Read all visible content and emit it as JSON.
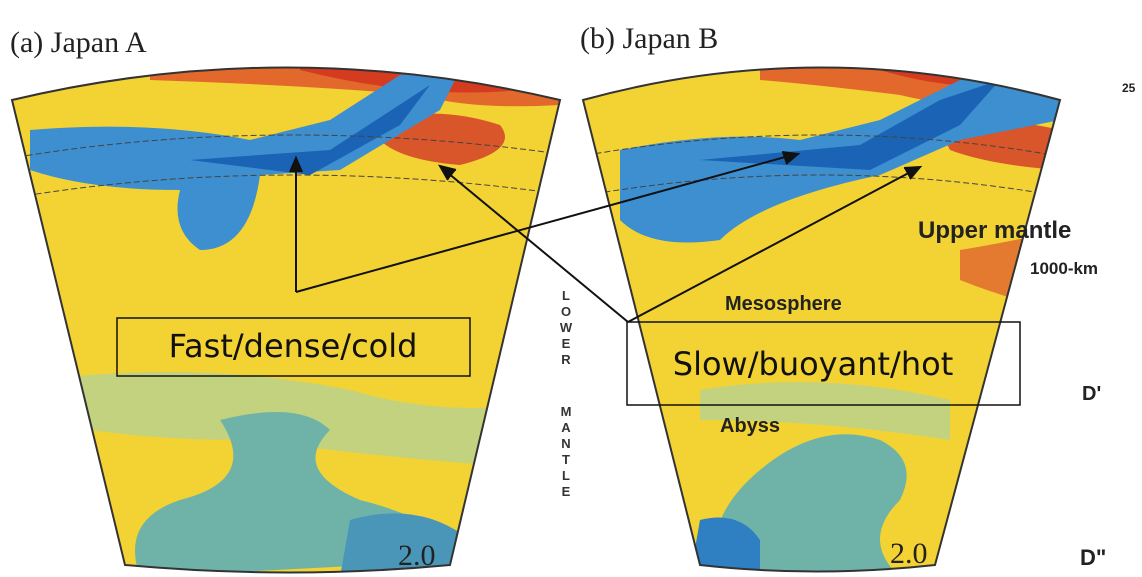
{
  "panels": [
    {
      "title": "(a) Japan A",
      "scale": "2.0"
    },
    {
      "title": "(b) Japan B",
      "scale": "2.0"
    }
  ],
  "lower_mantle": [
    "LOWER",
    "MANTLE"
  ],
  "layers": {
    "corner": "25",
    "upper": "Upper mantle",
    "depth": "1000-km",
    "mesosphere": "Mesosphere",
    "abyss": "Abyss",
    "d_prime": "D'",
    "d_double": "D\""
  },
  "callouts": {
    "fast": "Fast/dense/cold",
    "slow": "Slow/buoyant/hot"
  }
}
